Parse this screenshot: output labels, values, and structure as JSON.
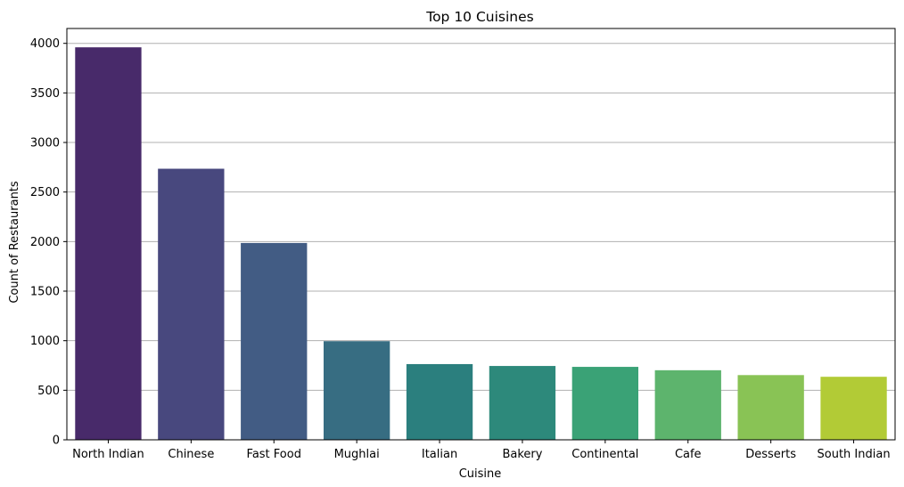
{
  "chart_data": {
    "type": "bar",
    "title": "Top 10 Cuisines",
    "xlabel": "Cuisine",
    "ylabel": "Count  of Restaurants",
    "categories": [
      "North Indian",
      "Chinese",
      "Fast Food",
      "Mughlai",
      "Italian",
      "Bakery",
      "Continental",
      "Cafe",
      "Desserts",
      "South Indian"
    ],
    "values": [
      3960,
      2735,
      1986,
      995,
      764,
      745,
      736,
      702,
      653,
      636
    ],
    "colors": [
      "#482a6a",
      "#48487e",
      "#425c84",
      "#376d82",
      "#2b7f7e",
      "#2d897b",
      "#3aa276",
      "#5db46d",
      "#89c355",
      "#b2cb36"
    ],
    "yticks": [
      0,
      500,
      1000,
      1500,
      2000,
      2500,
      3000,
      3500,
      4000
    ],
    "ylim": [
      0,
      4150
    ],
    "grid": "horizontal",
    "legend": "none"
  }
}
